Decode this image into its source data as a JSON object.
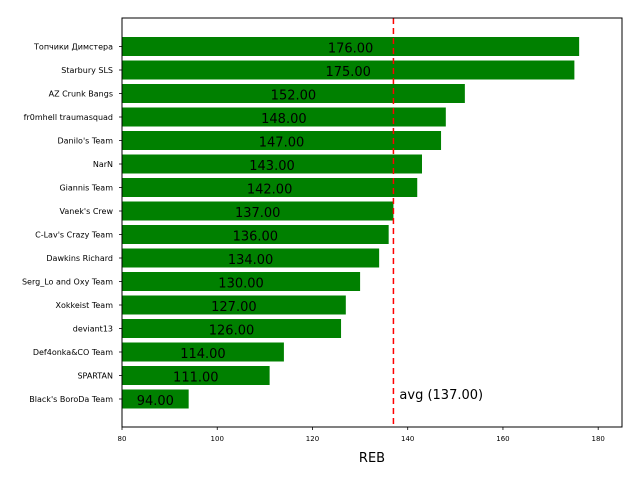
{
  "chart_data": {
    "type": "bar",
    "orientation": "horizontal",
    "categories": [
      "Топчики Димстера",
      "Starbury SLS",
      "AZ Crunk Bangs",
      "fr0mhell traumasquad",
      "Danilo's Team",
      "NarN",
      "Giannis Team",
      "Vanek's Crew",
      "C-Lav's Crazy Team",
      "Dawkins Richard",
      "Serg_Lo and Oxy Team",
      "Xokkeist Team",
      "deviant13",
      "Def4onka&CO Team",
      "SPARTAN",
      "Black's BoroDa Team"
    ],
    "values": [
      176,
      175,
      152,
      148,
      147,
      143,
      142,
      137,
      136,
      134,
      130,
      127,
      126,
      114,
      111,
      94
    ],
    "value_labels": [
      "176.00",
      "175.00",
      "152.00",
      "148.00",
      "147.00",
      "143.00",
      "142.00",
      "137.00",
      "136.00",
      "134.00",
      "130.00",
      "127.00",
      "126.00",
      "114.00",
      "111.00",
      "94.00"
    ],
    "title": "",
    "xlabel": "REB",
    "ylabel": "",
    "xlim": [
      80,
      185
    ],
    "xticks": [
      80,
      100,
      120,
      140,
      160,
      180
    ],
    "xtick_labels": [
      "80",
      "100",
      "120",
      "140",
      "160",
      "180"
    ],
    "grid": false,
    "bar_color": "#008000",
    "average": {
      "value": 137,
      "label": "avg (137.00)",
      "color": "#ff0000",
      "style": "dashed"
    }
  }
}
